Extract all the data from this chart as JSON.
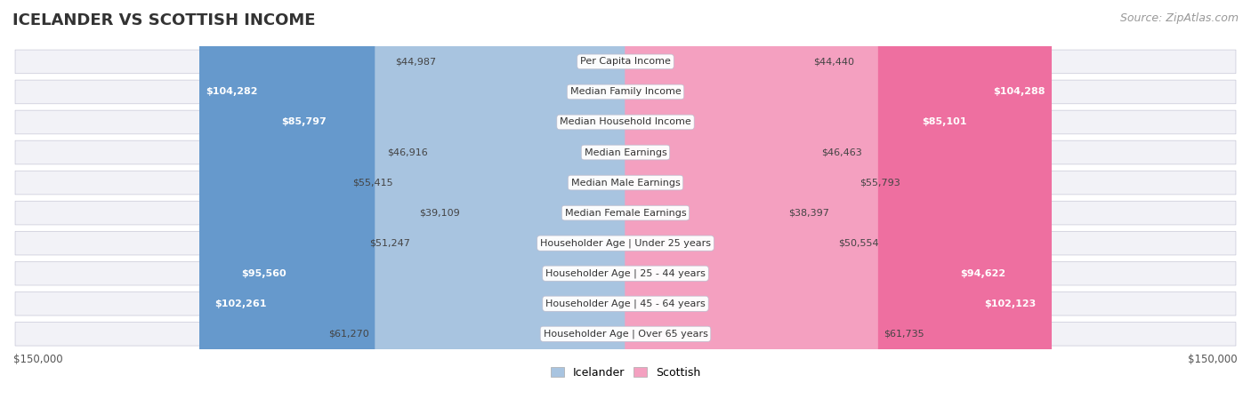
{
  "title": "ICELANDER VS SCOTTISH INCOME",
  "source": "Source: ZipAtlas.com",
  "categories": [
    "Per Capita Income",
    "Median Family Income",
    "Median Household Income",
    "Median Earnings",
    "Median Male Earnings",
    "Median Female Earnings",
    "Householder Age | Under 25 years",
    "Householder Age | 25 - 44 years",
    "Householder Age | 45 - 64 years",
    "Householder Age | Over 65 years"
  ],
  "icelander_values": [
    44987,
    104282,
    85797,
    46916,
    55415,
    39109,
    51247,
    95560,
    102261,
    61270
  ],
  "scottish_values": [
    44440,
    104288,
    85101,
    46463,
    55793,
    38397,
    50554,
    94622,
    102123,
    61735
  ],
  "icelander_labels": [
    "$44,987",
    "$104,282",
    "$85,797",
    "$46,916",
    "$55,415",
    "$39,109",
    "$51,247",
    "$95,560",
    "$102,261",
    "$61,270"
  ],
  "scottish_labels": [
    "$44,440",
    "$104,288",
    "$85,101",
    "$46,463",
    "$55,793",
    "$38,397",
    "$50,554",
    "$94,622",
    "$102,123",
    "$61,735"
  ],
  "max_value": 150000,
  "icelander_color_light": "#a8c4e0",
  "icelander_color_dark": "#6699cc",
  "scottish_color_light": "#f4a0c0",
  "scottish_color_dark": "#ee6fa0",
  "row_bg_color": "#f2f2f7",
  "row_edge_color": "#d0d0dd",
  "label_inside_threshold": 75000,
  "title_fontsize": 13,
  "source_fontsize": 9,
  "label_fontsize": 8,
  "category_fontsize": 8
}
